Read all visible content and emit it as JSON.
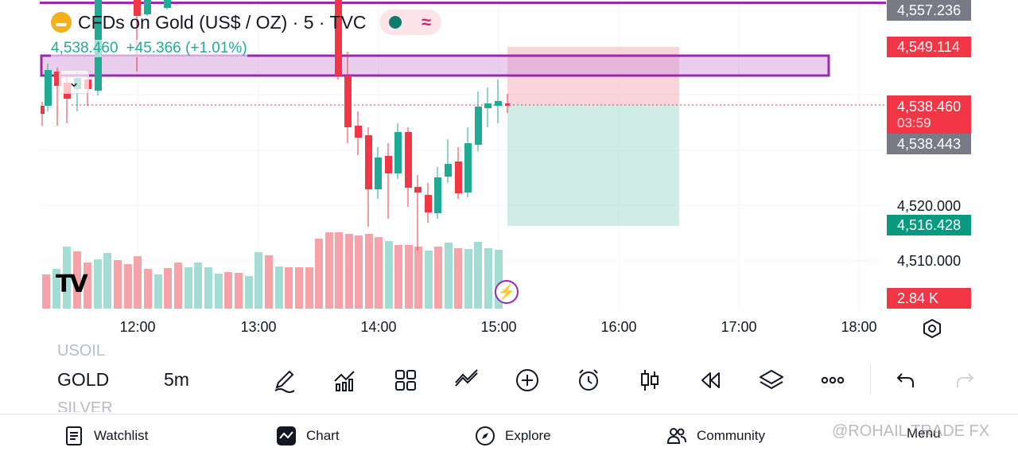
{
  "symbol": {
    "title": "CFDs on Gold (US$ / OZ) · 5 · TVC",
    "last_price": "4,538.460",
    "change": "+45.366 (+1.01%)",
    "logo_icon": "gold-bar-icon"
  },
  "price_axis": {
    "labels": [
      "4,557.236",
      "4,520.000",
      "4,510.000"
    ],
    "badges": {
      "top": "4,557.236",
      "resistance": "4,549.114",
      "current": "4,538.460",
      "countdown": "03:59",
      "bid": "4,538.443",
      "target": "4,516.428",
      "volume": "2.84 K"
    }
  },
  "time_axis": [
    "12:00",
    "13:00",
    "14:00",
    "15:00",
    "16:00",
    "17:00",
    "18:00"
  ],
  "colors": {
    "up": "#22ab94",
    "down": "#f23645",
    "zone": "#9c27b0",
    "badge_gray": "#787b86"
  },
  "toolbar": {
    "symbols": {
      "prev": "USOIL",
      "current": "GOLD",
      "next": "SILVER"
    },
    "interval": "5m",
    "tools": [
      "pencil-icon",
      "indicators-icon",
      "layouts-icon",
      "compare-icon",
      "add-icon",
      "alert-icon",
      "candles-icon",
      "replay-icon",
      "layers-icon",
      "more-icon",
      "undo-icon",
      "redo-icon"
    ]
  },
  "nav": {
    "watchlist": "Watchlist",
    "chart": "Chart",
    "explore": "Explore",
    "community": "Community",
    "menu": "Menu"
  },
  "watermark": "@ROHAIL TRADE FX"
}
